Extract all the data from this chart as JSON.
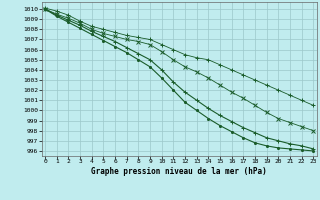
{
  "title": "Graphe pression niveau de la mer (hPa)",
  "bg_color": "#c0ecee",
  "grid_color": "#9cc8ca",
  "line_color": "#1a5c2a",
  "xlim": [
    -0.3,
    23.3
  ],
  "ylim": [
    995.5,
    1010.7
  ],
  "yticks": [
    996,
    997,
    998,
    999,
    1000,
    1001,
    1002,
    1003,
    1004,
    1005,
    1006,
    1007,
    1008,
    1009,
    1010
  ],
  "xticks": [
    0,
    1,
    2,
    3,
    4,
    5,
    6,
    7,
    8,
    9,
    10,
    11,
    12,
    13,
    14,
    15,
    16,
    17,
    18,
    19,
    20,
    21,
    22,
    23
  ],
  "series": [
    {
      "x": [
        0,
        1,
        2,
        3,
        4,
        5,
        6,
        7,
        8,
        9,
        10,
        11,
        12,
        13,
        14,
        15,
        16,
        17,
        18,
        19,
        20,
        21,
        22,
        23
      ],
      "y": [
        1010.1,
        1009.8,
        1009.4,
        1008.8,
        1008.3,
        1008.0,
        1007.7,
        1007.4,
        1007.2,
        1007.0,
        1006.5,
        1006.0,
        1005.5,
        1005.2,
        1005.0,
        1004.5,
        1004.0,
        1003.5,
        1003.0,
        1002.5,
        1002.0,
        1001.5,
        1001.0,
        1000.5
      ],
      "marker": "+"
    },
    {
      "x": [
        0,
        1,
        2,
        3,
        4,
        5,
        6,
        7,
        8,
        9,
        10,
        11,
        12,
        13,
        14,
        15,
        16,
        17,
        18,
        19,
        20,
        21,
        22,
        23
      ],
      "y": [
        1010.0,
        1009.5,
        1009.1,
        1008.6,
        1008.0,
        1007.6,
        1007.3,
        1007.0,
        1006.8,
        1006.5,
        1005.8,
        1005.0,
        1004.3,
        1003.8,
        1003.2,
        1002.5,
        1001.8,
        1001.2,
        1000.5,
        999.8,
        999.2,
        998.8,
        998.4,
        998.0
      ],
      "marker": "x"
    },
    {
      "x": [
        0,
        1,
        2,
        3,
        4,
        5,
        6,
        7,
        8,
        9,
        10,
        11,
        12,
        13,
        14,
        15,
        16,
        17,
        18,
        19,
        20,
        21,
        22,
        23
      ],
      "y": [
        1010.0,
        1009.4,
        1008.9,
        1008.4,
        1007.8,
        1007.3,
        1006.8,
        1006.2,
        1005.6,
        1005.0,
        1004.0,
        1002.8,
        1001.8,
        1001.0,
        1000.2,
        999.5,
        998.9,
        998.3,
        997.8,
        997.3,
        997.0,
        996.7,
        996.5,
        996.2
      ],
      "marker": "+"
    },
    {
      "x": [
        0,
        1,
        2,
        3,
        4,
        5,
        6,
        7,
        8,
        9,
        10,
        11,
        12,
        13,
        14,
        15,
        16,
        17,
        18,
        19,
        20,
        21,
        22,
        23
      ],
      "y": [
        1010.0,
        1009.3,
        1008.7,
        1008.1,
        1007.5,
        1006.9,
        1006.3,
        1005.7,
        1005.0,
        1004.3,
        1003.2,
        1002.0,
        1000.8,
        1000.0,
        999.2,
        998.5,
        997.9,
        997.3,
        996.8,
        996.5,
        996.3,
        996.2,
        996.1,
        996.0
      ],
      "marker": "."
    }
  ]
}
